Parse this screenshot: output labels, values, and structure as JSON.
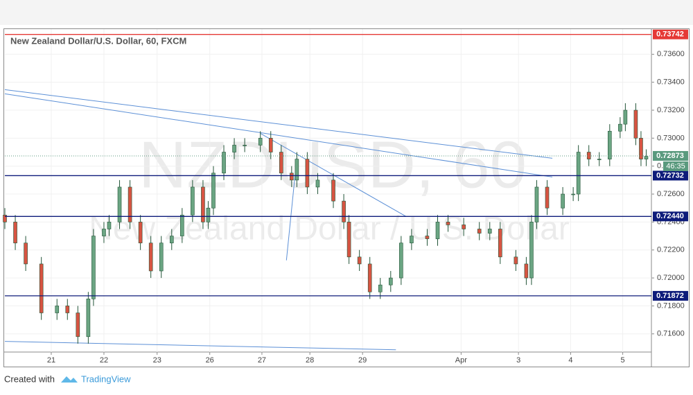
{
  "chart_data": {
    "type": "candlestick",
    "title": "New Zealand Dollar/U.S. Dollar, 60, FXCM",
    "watermark": [
      "NZDUSD, 60",
      "New Zealand Dollar / U.S. Dollar"
    ],
    "x": [
      0,
      2,
      4,
      7,
      10,
      12,
      14,
      16,
      17,
      19,
      20,
      22,
      24,
      26,
      28,
      30,
      32,
      34,
      36,
      38,
      39,
      40,
      42,
      44,
      46,
      49,
      51,
      53,
      55,
      56,
      58,
      60,
      63,
      65,
      66,
      68,
      70,
      72,
      74,
      76,
      78,
      81,
      83,
      85,
      88,
      91,
      93,
      95,
      98,
      100,
      101,
      102,
      104,
      107,
      109,
      110,
      112,
      114,
      116,
      118,
      119,
      121,
      122,
      123
    ],
    "open": [
      0.7245,
      0.724,
      0.7225,
      0.721,
      0.7175,
      0.718,
      0.7175,
      0.7158,
      0.7185,
      0.723,
      0.7235,
      0.724,
      0.7265,
      0.724,
      0.7225,
      0.7205,
      0.7225,
      0.723,
      0.7245,
      0.7265,
      0.724,
      0.725,
      0.7275,
      0.729,
      0.7295,
      0.7295,
      0.73,
      0.729,
      0.7275,
      0.727,
      0.7285,
      0.7265,
      0.727,
      0.7255,
      0.724,
      0.7215,
      0.721,
      0.719,
      0.7195,
      0.72,
      0.7225,
      0.723,
      0.7228,
      0.724,
      0.7238,
      0.7235,
      0.7232,
      0.7235,
      0.7215,
      0.721,
      0.72,
      0.724,
      0.7265,
      0.725,
      0.726,
      0.726,
      0.729,
      0.7285,
      0.7285,
      0.7305,
      0.731,
      0.732,
      0.73,
      0.7285
    ],
    "high": [
      0.725,
      0.7245,
      0.723,
      0.7215,
      0.7185,
      0.7185,
      0.718,
      0.719,
      0.7235,
      0.724,
      0.7245,
      0.727,
      0.727,
      0.7245,
      0.723,
      0.723,
      0.7235,
      0.725,
      0.727,
      0.727,
      0.7255,
      0.728,
      0.7295,
      0.73,
      0.73,
      0.7305,
      0.7305,
      0.7295,
      0.728,
      0.729,
      0.729,
      0.7275,
      0.7275,
      0.726,
      0.7245,
      0.722,
      0.7215,
      0.72,
      0.7205,
      0.723,
      0.7235,
      0.7235,
      0.7245,
      0.7245,
      0.7243,
      0.724,
      0.724,
      0.724,
      0.722,
      0.7215,
      0.7245,
      0.727,
      0.727,
      0.7265,
      0.7265,
      0.7295,
      0.7295,
      0.729,
      0.731,
      0.7315,
      0.7325,
      0.7325,
      0.7305,
      0.7292
    ],
    "low": [
      0.7235,
      0.722,
      0.7205,
      0.717,
      0.717,
      0.717,
      0.7153,
      0.7153,
      0.718,
      0.7225,
      0.723,
      0.7235,
      0.7235,
      0.722,
      0.72,
      0.72,
      0.722,
      0.7225,
      0.724,
      0.7235,
      0.7235,
      0.7245,
      0.727,
      0.7285,
      0.729,
      0.729,
      0.7285,
      0.727,
      0.7265,
      0.7265,
      0.726,
      0.726,
      0.725,
      0.7235,
      0.721,
      0.7205,
      0.7185,
      0.7185,
      0.719,
      0.7195,
      0.722,
      0.7223,
      0.7223,
      0.7233,
      0.723,
      0.7227,
      0.7227,
      0.721,
      0.7205,
      0.7195,
      0.7195,
      0.7235,
      0.7245,
      0.7245,
      0.7255,
      0.7255,
      0.728,
      0.728,
      0.728,
      0.73,
      0.7305,
      0.7295,
      0.728,
      0.728
    ],
    "close": [
      0.724,
      0.7225,
      0.721,
      0.7175,
      0.718,
      0.7175,
      0.7158,
      0.7185,
      0.723,
      0.7235,
      0.724,
      0.7265,
      0.724,
      0.7225,
      0.7205,
      0.7225,
      0.723,
      0.7245,
      0.7265,
      0.724,
      0.725,
      0.7275,
      0.729,
      0.7295,
      0.7295,
      0.73,
      0.729,
      0.7275,
      0.727,
      0.7285,
      0.7265,
      0.727,
      0.7255,
      0.724,
      0.7215,
      0.721,
      0.719,
      0.7195,
      0.72,
      0.7225,
      0.723,
      0.7228,
      0.724,
      0.7238,
      0.7235,
      0.7232,
      0.7235,
      0.7215,
      0.721,
      0.72,
      0.724,
      0.7265,
      0.725,
      0.726,
      0.726,
      0.729,
      0.7285,
      0.7285,
      0.7305,
      0.731,
      0.732,
      0.73,
      0.7285,
      0.7287
    ],
    "up_color": "#6ba583",
    "down_color": "#d75442",
    "border_color": "#225437",
    "xlim": [
      0,
      124
    ],
    "xticks": [
      {
        "value": 8.9,
        "label": "21"
      },
      {
        "value": 19,
        "label": "22"
      },
      {
        "value": 29.2,
        "label": "23"
      },
      {
        "value": 39.3,
        "label": "26"
      },
      {
        "value": 49.3,
        "label": "27"
      },
      {
        "value": 58.5,
        "label": "28"
      },
      {
        "value": 68.6,
        "label": "29"
      },
      {
        "value": 87.5,
        "label": "Apr"
      },
      {
        "value": 98.5,
        "label": "3"
      },
      {
        "value": 108.5,
        "label": "4"
      },
      {
        "value": 118.5,
        "label": "5"
      }
    ],
    "ylim": [
      0.7147,
      0.7378
    ],
    "yticks": [
      {
        "value": 0.716,
        "label": "0.71600"
      },
      {
        "value": 0.718,
        "label": "0.71800"
      },
      {
        "value": 0.72,
        "label": "0.72000"
      },
      {
        "value": 0.722,
        "label": "0.72200"
      },
      {
        "value": 0.724,
        "label": "0.72400"
      },
      {
        "value": 0.726,
        "label": "0.72600"
      },
      {
        "value": 0.728,
        "label": "0.72800"
      },
      {
        "value": 0.73,
        "label": "0.73000"
      },
      {
        "value": 0.732,
        "label": "0.73200"
      },
      {
        "value": 0.734,
        "label": "0.73400"
      },
      {
        "value": 0.736,
        "label": "0.73600"
      }
    ],
    "grid": true,
    "levels": [
      {
        "value": 0.73742,
        "color": "#e53935"
      },
      {
        "value": 0.72732,
        "color": "#0d1b7a"
      },
      {
        "value": 0.7244,
        "label": "0.72440",
        "color": "#0d1b7a"
      },
      {
        "value": 0.71872,
        "color": "#0d1b7a"
      }
    ],
    "last_price": 0.72873,
    "last_price_color": "#5a9a7e",
    "countdown": "46:35",
    "trendline_color": "#5b8fd6",
    "trendlines": [
      {
        "x": [
          0,
          105
        ],
        "y": [
          0.73347,
          0.72856
        ]
      },
      {
        "x": [
          0,
          105
        ],
        "y": [
          0.73317,
          0.72722
        ]
      },
      {
        "x": [
          49,
          77
        ],
        "y": [
          0.73034,
          0.72439
        ]
      },
      {
        "x": [
          56,
          54
        ],
        "y": [
          0.72861,
          0.72126
        ]
      },
      {
        "x": [
          0,
          75
        ],
        "y": [
          0.71546,
          0.71486
        ]
      }
    ]
  },
  "footer": {
    "created_with": "Created with",
    "brand": "TradingView"
  }
}
